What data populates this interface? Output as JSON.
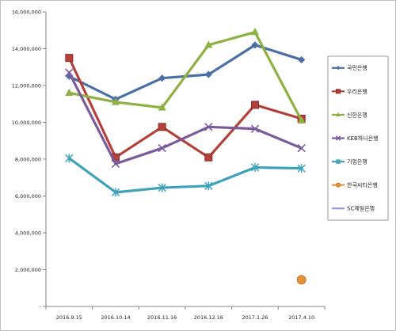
{
  "chart_data": {
    "type": "line",
    "title": "",
    "xlabel": "",
    "ylabel": "",
    "ylim": [
      0,
      16000000
    ],
    "yticks": [
      0,
      2000000,
      4000000,
      6000000,
      8000000,
      10000000,
      12000000,
      14000000,
      16000000
    ],
    "ytick_labels": [
      "-",
      "2,000,000",
      "4,000,000",
      "6,000,000",
      "8,000,000",
      "10,000,000",
      "12,000,000",
      "14,000,000",
      "16,000,000"
    ],
    "categories": [
      "2016.9.15",
      "2016.10.14",
      "2016.11.16",
      "2016.12.16",
      "2017.1.26",
      "2017.4.10"
    ],
    "grid": false,
    "legend_position": "right",
    "series": [
      {
        "name": "국민은행",
        "color": "#4a6fa5",
        "marker": "diamond",
        "values": [
          12500000,
          11250000,
          12400000,
          12600000,
          14200000,
          13400000
        ]
      },
      {
        "name": "우리은행",
        "color": "#b5403a",
        "marker": "square",
        "values": [
          13500000,
          8100000,
          9750000,
          8100000,
          10950000,
          10200000
        ]
      },
      {
        "name": "신한은행",
        "color": "#8fb042",
        "marker": "triangle",
        "values": [
          11600000,
          11100000,
          10800000,
          14200000,
          14900000,
          10100000
        ]
      },
      {
        "name": "KEB하나은행",
        "color": "#7b5a9b",
        "marker": "x",
        "values": [
          12700000,
          7750000,
          8600000,
          9750000,
          9650000,
          8600000
        ]
      },
      {
        "name": "기업은행",
        "color": "#3ea2ba",
        "marker": "star",
        "values": [
          8050000,
          6200000,
          6450000,
          6550000,
          7550000,
          7500000
        ]
      },
      {
        "name": "한국씨티은행",
        "color": "#e8923a",
        "marker": "circle",
        "values": [
          null,
          null,
          null,
          null,
          null,
          1450000
        ]
      },
      {
        "name": "SC제일은행",
        "color": "#8c9fd0",
        "marker": "none",
        "values": [
          null,
          null,
          null,
          null,
          null,
          null
        ]
      }
    ]
  }
}
